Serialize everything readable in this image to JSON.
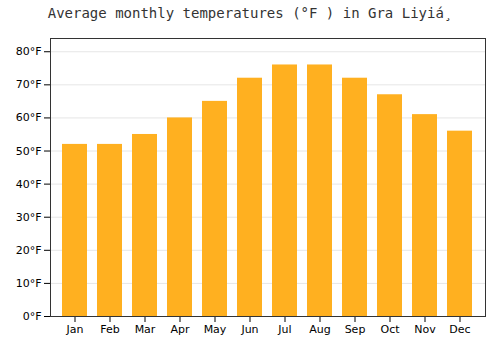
{
  "chart_data": {
    "type": "bar",
    "title": "Average monthly temperatures (°F ) in Gra Liyiá¸",
    "categories": [
      "Jan",
      "Feb",
      "Mar",
      "Apr",
      "May",
      "Jun",
      "Jul",
      "Aug",
      "Sep",
      "Oct",
      "Nov",
      "Dec"
    ],
    "values": [
      52,
      52,
      55,
      60,
      65,
      72,
      76,
      76,
      72,
      67,
      61,
      56
    ],
    "color": "#FFB020",
    "ylim": [
      0,
      84
    ],
    "yticks": [
      {
        "value": 0,
        "label": "0°F"
      },
      {
        "value": 10,
        "label": "10°F"
      },
      {
        "value": 20,
        "label": "20°F"
      },
      {
        "value": 30,
        "label": "30°F"
      },
      {
        "value": 40,
        "label": "40°F"
      },
      {
        "value": 50,
        "label": "50°F"
      },
      {
        "value": 60,
        "label": "60°F"
      },
      {
        "value": 70,
        "label": "70°F"
      },
      {
        "value": 80,
        "label": "80°F"
      }
    ],
    "grid": true
  }
}
